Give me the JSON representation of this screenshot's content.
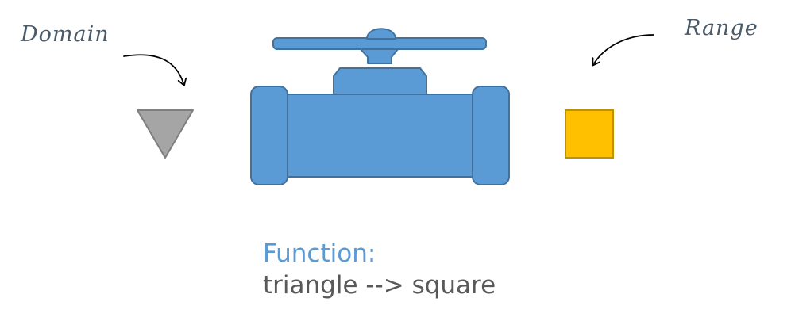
{
  "labels": {
    "domain": "Domain",
    "range": "Range"
  },
  "caption": {
    "title": "Function:",
    "text": "triangle --> square"
  },
  "colors": {
    "valve": "#5b9bd5",
    "valve_outline": "#41719c",
    "triangle_fill": "#a5a5a5",
    "triangle_outline": "#7f7f7f",
    "square_fill": "#ffc000",
    "square_outline": "#bf9000",
    "title": "#5b9bd5",
    "text": "#595959"
  },
  "icons": {
    "domain_shape": "inverted-triangle-icon",
    "machine": "valve-icon",
    "range_shape": "square-icon"
  }
}
